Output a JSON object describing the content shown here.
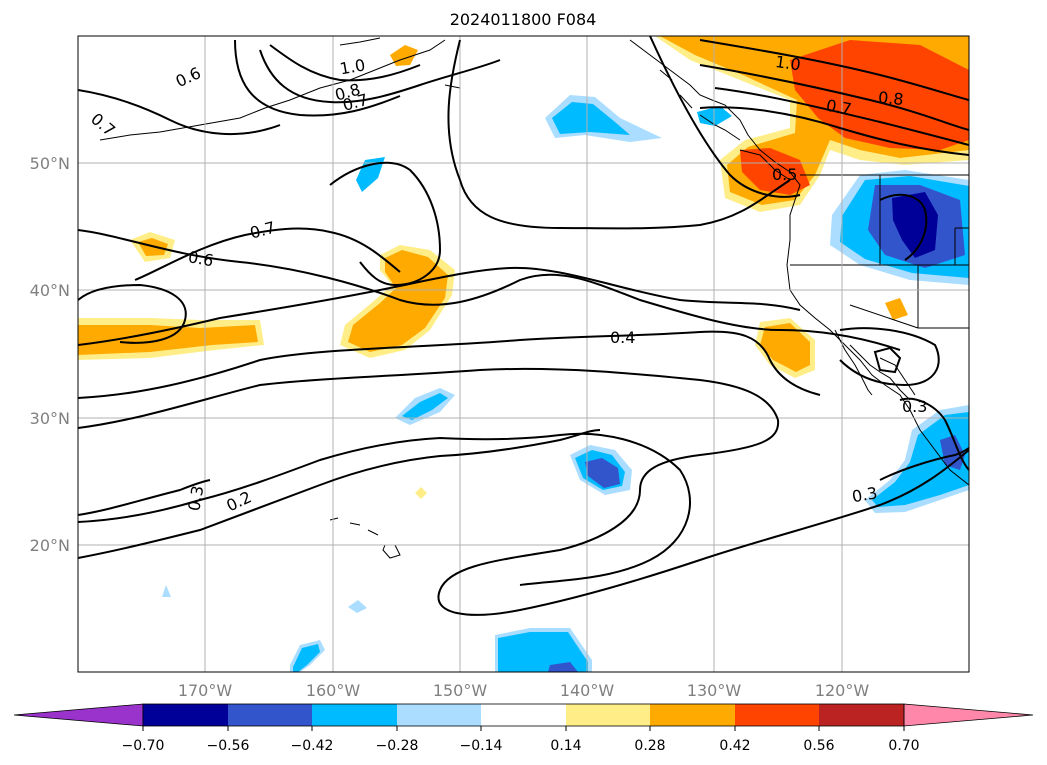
{
  "title": "2024011800 F084",
  "axes": {
    "longitude_ticks": [
      "170°W",
      "160°W",
      "150°W",
      "140°W",
      "130°W",
      "120°W"
    ],
    "latitude_ticks": [
      "50°N",
      "40°N",
      "30°N",
      "20°N"
    ],
    "lon_range": [
      -180,
      -110
    ],
    "lat_range": [
      10,
      60
    ],
    "grid": true
  },
  "colorbar": {
    "extend": "both",
    "ticks": [
      "−0.70",
      "−0.56",
      "−0.42",
      "−0.28",
      "−0.14",
      "0.14",
      "0.28",
      "0.42",
      "0.56",
      "0.70"
    ],
    "colors": {
      "under": "#9933cc",
      "bin_1": "#000099",
      "bin_2": "#3355cc",
      "bin_3": "#00bbff",
      "bin_4": "#aaddff",
      "bin_5": "#ffffff",
      "bin_6": "#ffee88",
      "bin_7": "#ffaa00",
      "bin_8": "#ff4400",
      "bin_9": "#bb2222",
      "over": "#ff88aa"
    }
  },
  "contour_labels": [
    "0.6",
    "0.7",
    "1.0",
    "0.8",
    "0.7",
    "0.7",
    "0.6",
    "0.4",
    "0.3",
    "0.2",
    "1.0",
    "0.7",
    "0.8",
    "0.3",
    "0.5",
    "0.3"
  ]
}
